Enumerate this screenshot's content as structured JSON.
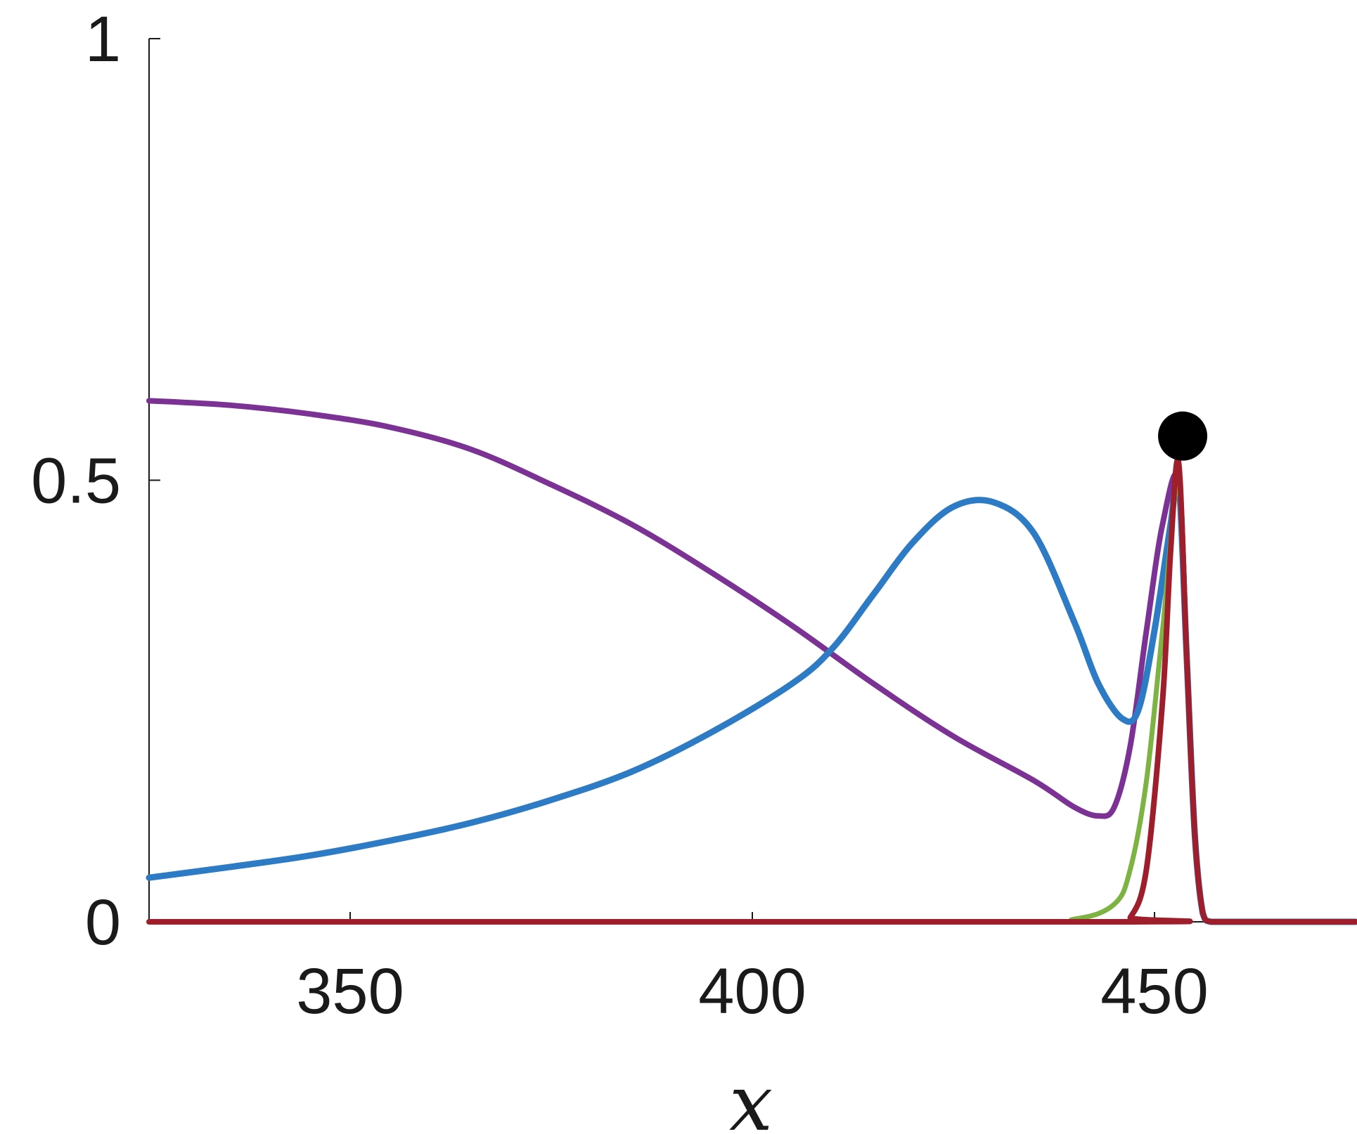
{
  "chart_data": {
    "type": "line",
    "title": "",
    "xlabel": "x",
    "ylabel": "",
    "xlim": [
      325,
      475
    ],
    "ylim": [
      0,
      1
    ],
    "xticks": [
      350,
      400,
      450
    ],
    "yticks": [
      0,
      0.5,
      1
    ],
    "xtick_labels": [
      "350",
      "400",
      "450"
    ],
    "ytick_labels": [
      "0",
      "0.5",
      "1"
    ],
    "grid": false,
    "series": [
      {
        "color": "#7b3294",
        "x": [
          325,
          335,
          345,
          355,
          365,
          375,
          385,
          395,
          405,
          415,
          425,
          435,
          440,
          443,
          445,
          447,
          449,
          451,
          453,
          454,
          455,
          456,
          457,
          460,
          465,
          470,
          475
        ],
        "y": [
          0.59,
          0.585,
          0.575,
          0.56,
          0.535,
          0.495,
          0.45,
          0.395,
          0.335,
          0.27,
          0.21,
          0.16,
          0.13,
          0.12,
          0.13,
          0.2,
          0.33,
          0.45,
          0.5,
          0.3,
          0.1,
          0.01,
          0,
          0,
          0,
          0,
          0
        ]
      },
      {
        "color": "#2c7bc4",
        "x": [
          325,
          335,
          345,
          355,
          365,
          375,
          385,
          395,
          405,
          410,
          415,
          420,
          425,
          430,
          435,
          440,
          443,
          446,
          448,
          450,
          452,
          453,
          454,
          455,
          456,
          457,
          460,
          465,
          470,
          475
        ],
        "y": [
          0.05,
          0.062,
          0.075,
          0.092,
          0.112,
          0.138,
          0.17,
          0.215,
          0.27,
          0.31,
          0.37,
          0.43,
          0.47,
          0.475,
          0.44,
          0.34,
          0.27,
          0.23,
          0.24,
          0.33,
          0.45,
          0.5,
          0.3,
          0.1,
          0.01,
          0,
          0,
          0,
          0,
          0
        ]
      },
      {
        "color": "#7cb342",
        "x": [
          325,
          430,
          440,
          445,
          447,
          449,
          451,
          453,
          454,
          455,
          456,
          457,
          460,
          475
        ],
        "y": [
          0,
          0,
          0.003,
          0.02,
          0.06,
          0.16,
          0.33,
          0.5,
          0.3,
          0.1,
          0.01,
          0,
          0,
          0
        ]
      },
      {
        "color": "#9e1f2b",
        "x": [
          325,
          445,
          447,
          449,
          451,
          452,
          453,
          454,
          455,
          456,
          457,
          460,
          475
        ],
        "y": [
          0,
          0,
          0.005,
          0.06,
          0.25,
          0.42,
          0.52,
          0.3,
          0.1,
          0.01,
          0,
          0,
          0
        ]
      }
    ],
    "markers": [
      {
        "x": 453.5,
        "y": 0.55,
        "color": "#000000"
      }
    ]
  }
}
